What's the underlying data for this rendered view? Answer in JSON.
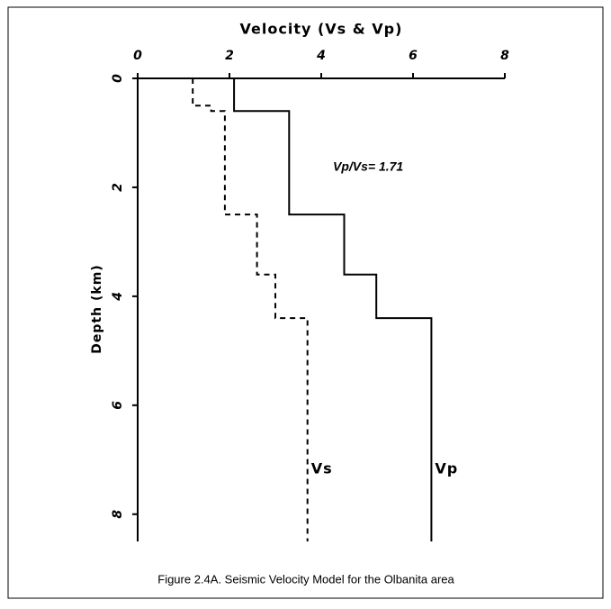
{
  "chart_data": {
    "type": "line",
    "title": "Velocity (Vs & Vp)",
    "y_label": "Depth (km)",
    "annotation": "Vp/Vs= 1.71",
    "caption": "Figure 2.4A. Seismic Velocity Model for the Olbanita area",
    "xlim": [
      0,
      8
    ],
    "xticks": [
      0,
      2,
      4,
      6,
      8
    ],
    "ylim": [
      0,
      8.5
    ],
    "yticks": [
      0,
      2,
      4,
      6,
      8
    ],
    "y_inverted": true,
    "x_axis_position": "top",
    "series": [
      {
        "name": "Vs",
        "color": "#000000",
        "dash": true,
        "x": [
          1.2,
          1.2,
          1.6,
          1.6,
          1.9,
          1.9,
          2.6,
          2.6,
          3.0,
          3.0,
          3.7,
          3.7
        ],
        "values": [
          0,
          0.5,
          0.5,
          0.6,
          0.6,
          2.5,
          2.5,
          3.6,
          3.6,
          4.4,
          4.4,
          8.5
        ]
      },
      {
        "name": "Vp",
        "color": "#000000",
        "dash": false,
        "x": [
          2.1,
          2.1,
          3.3,
          3.3,
          4.5,
          4.5,
          5.2,
          5.2,
          6.4,
          6.4
        ],
        "values": [
          0,
          0.6,
          0.6,
          2.5,
          2.5,
          3.6,
          3.6,
          4.4,
          4.4,
          8.5
        ]
      }
    ]
  }
}
